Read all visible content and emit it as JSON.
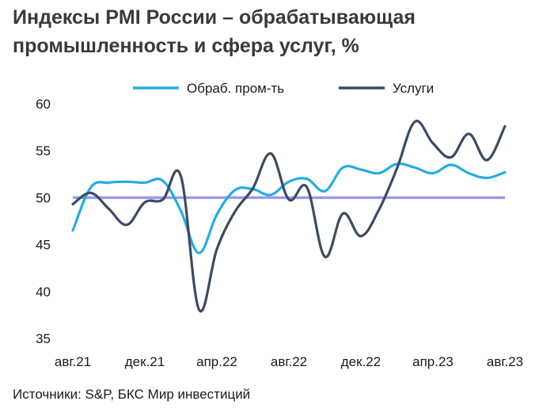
{
  "page": {
    "title_lines": [
      "Индексы PMI России – обрабатывающая",
      "промышленность и сфера услуг, %"
    ],
    "source": "Источники: S&P, БКС Мир инвестиций"
  },
  "chart_data": {
    "type": "line",
    "title": "Индексы PMI России – обрабатывающая промышленность и сфера услуг, %",
    "xlabel": "",
    "ylabel": "",
    "ylim": [
      35,
      60
    ],
    "yticks": [
      35,
      40,
      45,
      50,
      55,
      60
    ],
    "grid": false,
    "legend_position": "top",
    "x": [
      "2021-08",
      "2021-09",
      "2021-10",
      "2021-11",
      "2021-12",
      "2022-01",
      "2022-02",
      "2022-03",
      "2022-04",
      "2022-05",
      "2022-06",
      "2022-07",
      "2022-08",
      "2022-09",
      "2022-10",
      "2022-11",
      "2022-12",
      "2023-01",
      "2023-02",
      "2023-03",
      "2023-04",
      "2023-05",
      "2023-06",
      "2023-07",
      "2023-08"
    ],
    "x_tick_labels": [
      {
        "index": 0,
        "label": "авг.21"
      },
      {
        "index": 4,
        "label": "дек.21"
      },
      {
        "index": 8,
        "label": "апр.22"
      },
      {
        "index": 12,
        "label": "авг.22"
      },
      {
        "index": 16,
        "label": "дек.22"
      },
      {
        "index": 20,
        "label": "апр.23"
      },
      {
        "index": 24,
        "label": "авг.23"
      }
    ],
    "series": [
      {
        "name": "Обраб. пром-ть",
        "color": "#29abe2",
        "values": [
          46.5,
          51.1,
          51.6,
          51.7,
          51.6,
          51.8,
          48.6,
          44.1,
          48.2,
          50.8,
          50.9,
          50.3,
          51.7,
          52.0,
          50.7,
          53.2,
          53.0,
          52.6,
          53.6,
          53.2,
          52.6,
          53.5,
          52.6,
          52.1,
          52.7
        ]
      },
      {
        "name": "Услуги",
        "color": "#3d4a63",
        "values": [
          49.3,
          50.5,
          48.8,
          47.1,
          49.5,
          49.8,
          52.3,
          38.1,
          44.5,
          48.5,
          51.0,
          54.7,
          49.8,
          51.1,
          43.7,
          48.3,
          45.9,
          48.7,
          53.1,
          58.1,
          55.8,
          54.3,
          56.8,
          54.0,
          57.6
        ]
      }
    ],
    "reference_line": {
      "value": 50,
      "color": "#9b9be6"
    }
  }
}
